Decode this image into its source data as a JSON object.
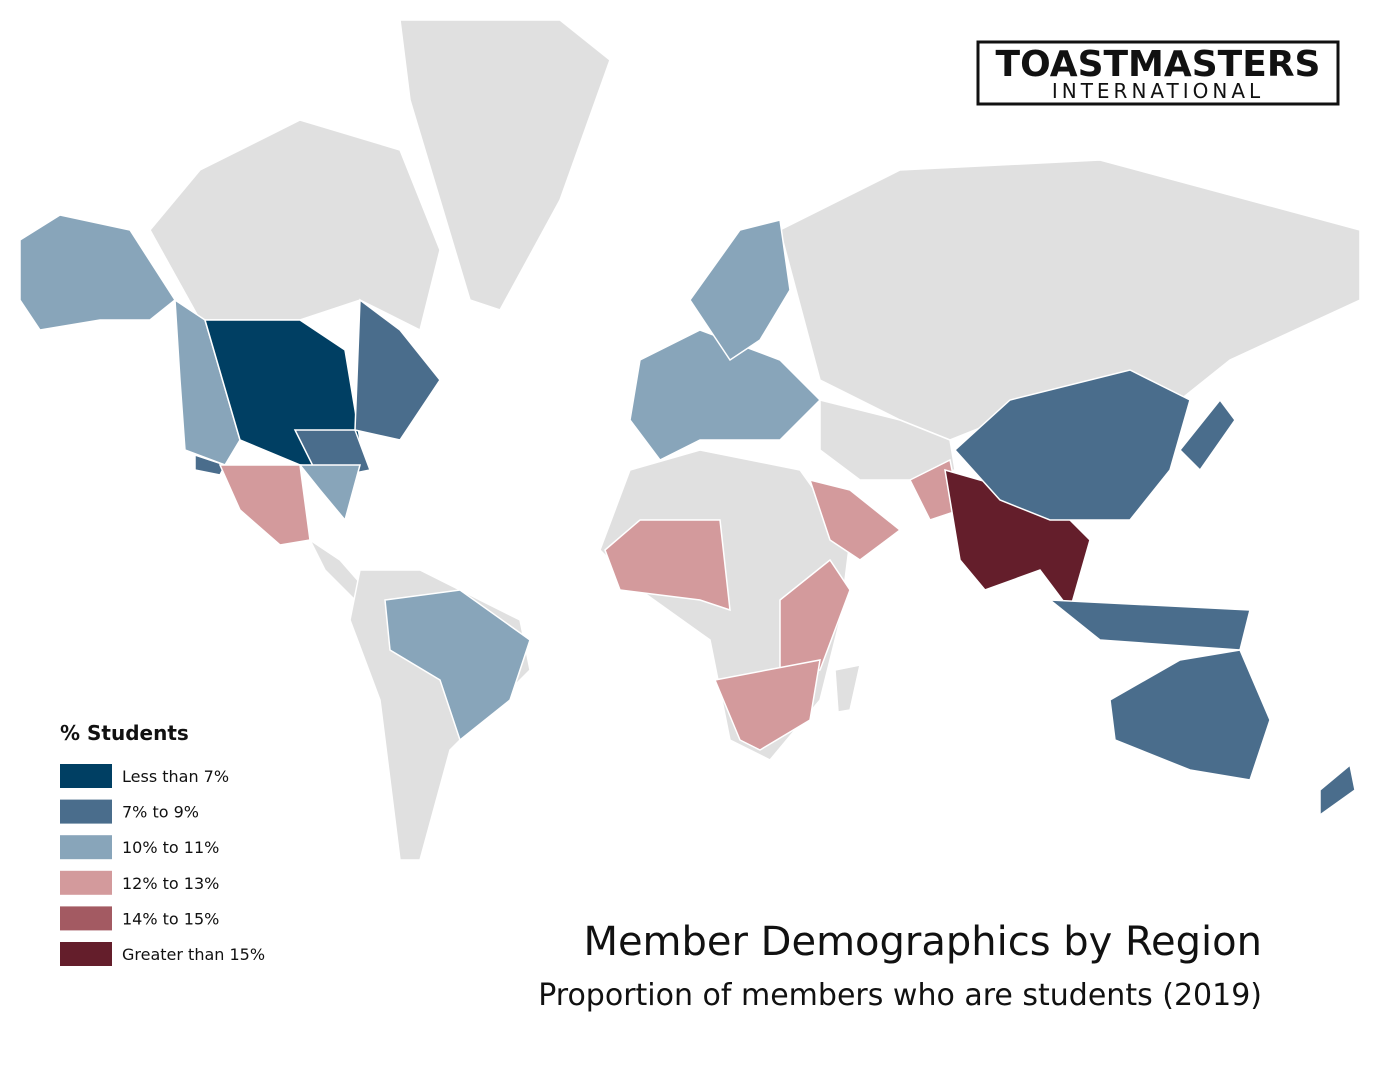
{
  "logo": {
    "name": "TOASTMASTERS",
    "subtitle": "INTERNATIONAL"
  },
  "legend": {
    "title": "% Students",
    "items": [
      {
        "label": "Less than 7%",
        "color": "#003f63"
      },
      {
        "label": "7% to 9%",
        "color": "#4a6d8c"
      },
      {
        "label": "10% to 11%",
        "color": "#88a5ba"
      },
      {
        "label": "12% to 13%",
        "color": "#d39a9c"
      },
      {
        "label": "14% to 15%",
        "color": "#a35a62"
      },
      {
        "label": "Greater than 15%",
        "color": "#641e2b"
      }
    ]
  },
  "title": "Member Demographics by Region",
  "subtitle": "Proportion of members who are students (2019)"
}
